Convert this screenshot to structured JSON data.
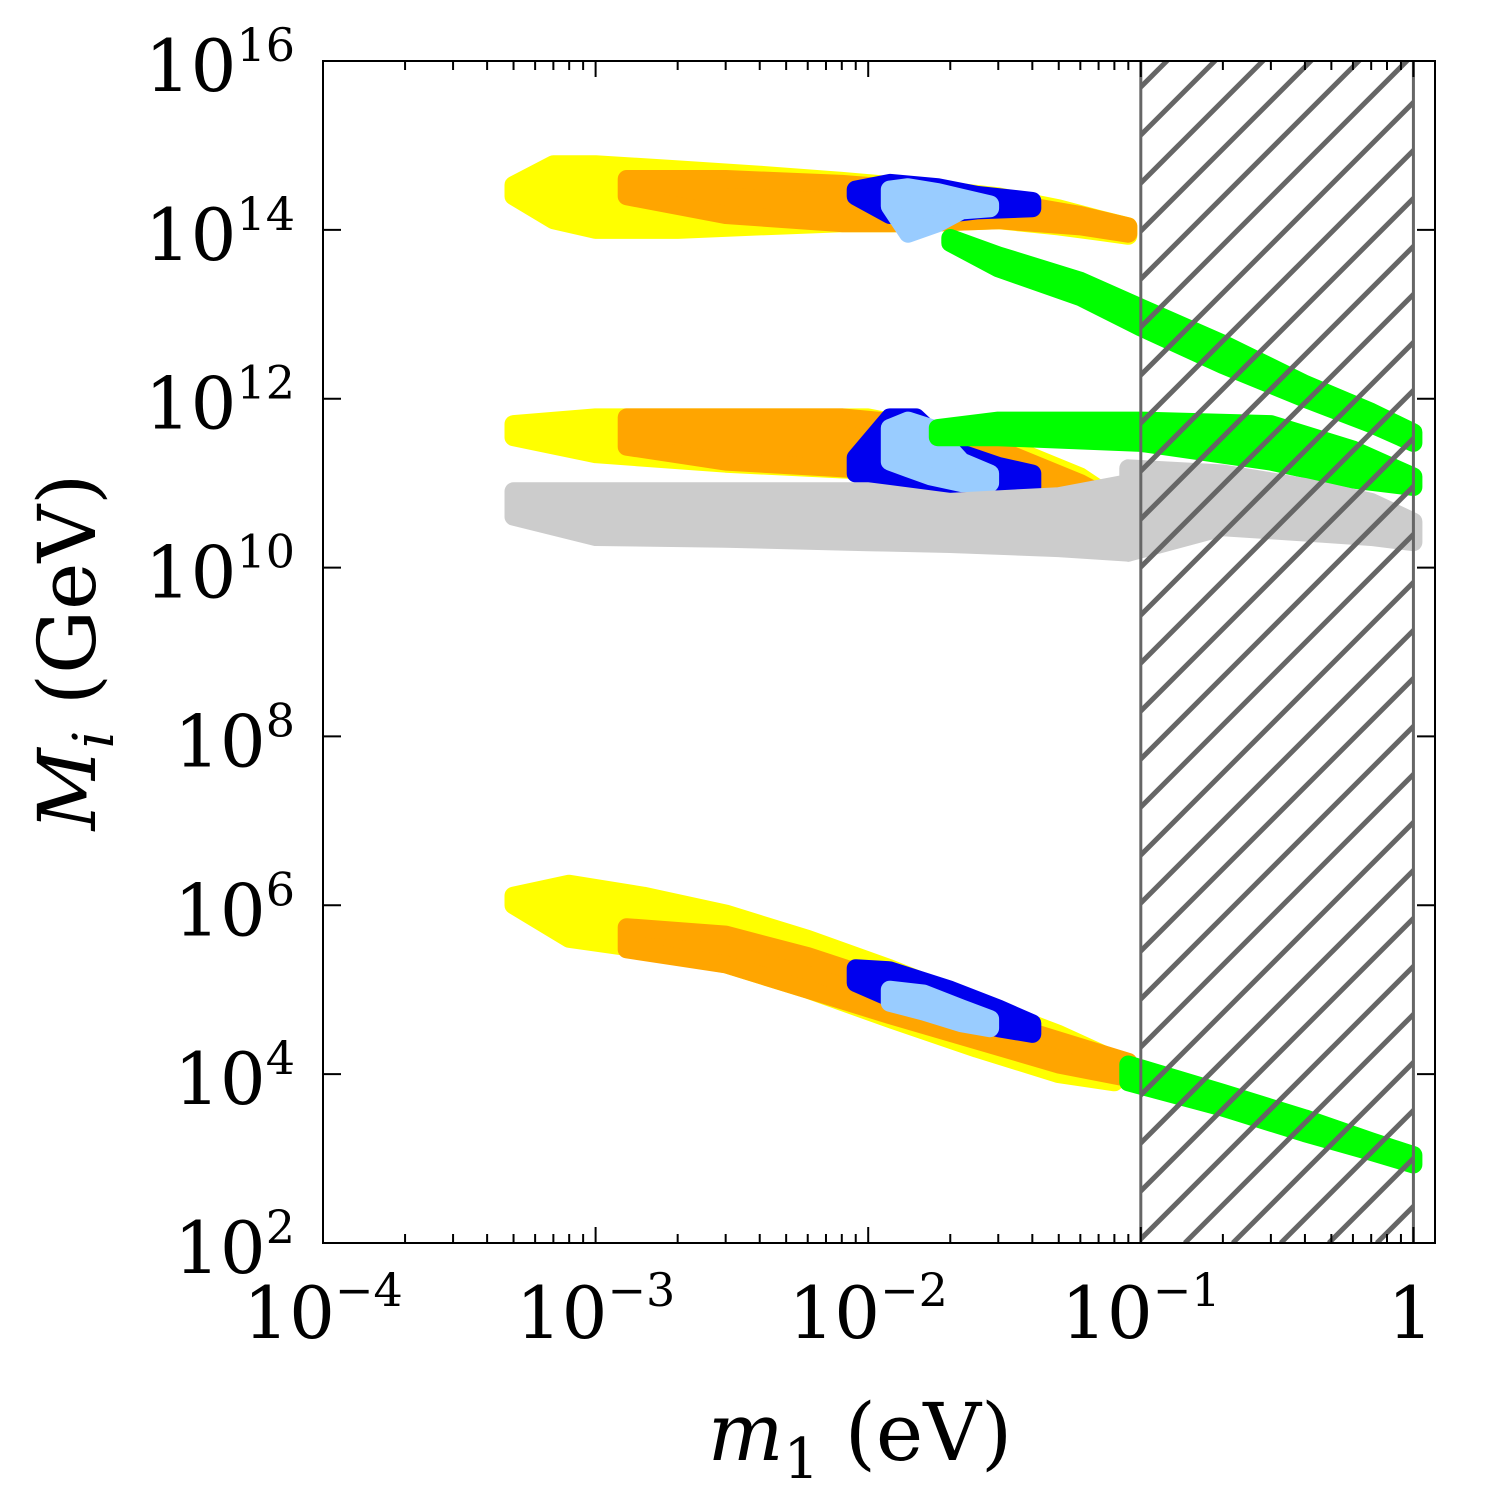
{
  "chart_data": {
    "type": "scatter",
    "title": "",
    "xlabel": "m",
    "xlabel_sub": "1",
    "xlabel_unit": " (eV)",
    "ylabel": "M",
    "ylabel_sub": "i",
    "ylabel_unit": " (GeV)",
    "x_scale": "log",
    "y_scale": "log",
    "xlim": [
      0.0001,
      1.2
    ],
    "ylim": [
      100,
      1e+16
    ],
    "x_ticks": [
      {
        "value": 0.0001,
        "base": "10",
        "exp": "−4"
      },
      {
        "value": 0.001,
        "base": "10",
        "exp": "−3"
      },
      {
        "value": 0.01,
        "base": "10",
        "exp": "−2"
      },
      {
        "value": 0.1,
        "base": "10",
        "exp": "−1"
      },
      {
        "value": 1,
        "base": "1",
        "exp": ""
      }
    ],
    "y_ticks": [
      {
        "value": 100,
        "base": "10",
        "exp": "2"
      },
      {
        "value": 10000,
        "base": "10",
        "exp": "4"
      },
      {
        "value": 1000000,
        "base": "10",
        "exp": "6"
      },
      {
        "value": 100000000,
        "base": "10",
        "exp": "8"
      },
      {
        "value": 10000000000,
        "base": "10",
        "exp": "10"
      },
      {
        "value": 1000000000000,
        "base": "10",
        "exp": "12"
      },
      {
        "value": 100000000000000,
        "base": "10",
        "exp": "14"
      },
      {
        "value": 10000000000000000,
        "base": "10",
        "exp": "16"
      }
    ],
    "grid": false,
    "excluded_region": {
      "x_min": 0.1,
      "x_max": 1,
      "pattern": "hatched",
      "color": "#666666"
    },
    "colors": {
      "yellow": "#ffff00",
      "orange": "#ffa500",
      "blue": "#0000ee",
      "lightblue": "#99ccff",
      "green": "#00ff00",
      "gray": "#cccccc"
    },
    "series": [
      {
        "color": "yellow",
        "bands": [
          {
            "x": [
              0.0005,
              0.0007,
              0.001,
              0.002,
              0.004,
              0.008,
              0.015,
              0.03,
              0.05,
              0.07,
              0.09
            ],
            "upper": [
              340000000000000.0,
              600000000000000.0,
              600000000000000.0,
              520000000000000.0,
              450000000000000.0,
              380000000000000.0,
              320000000000000.0,
              250000000000000.0,
              180000000000000.0,
              135000000000000.0,
              110000000000000.0
            ],
            "lower": [
              250000000000000.0,
              130000000000000.0,
              100000000000000.0,
              100000000000000.0,
              110000000000000.0,
              120000000000000.0,
              120000000000000.0,
              130000000000000.0,
              110000000000000.0,
              95000000000000.0,
              85000000000000.0
            ]
          },
          {
            "x": [
              0.0005,
              0.001,
              0.003,
              0.01,
              0.03,
              0.06,
              0.09
            ],
            "upper": [
              500000000000.0,
              600000000000.0,
              600000000000.0,
              600000000000.0,
              300000000000.0,
              120000000000.0,
              50000000000.0
            ],
            "lower": [
              350000000000.0,
              220000000000.0,
              170000000000.0,
              140000000000.0,
              90000000000.0,
              50000000000.0,
              30000000000.0
            ]
          },
          {
            "x": [
              0.0005,
              0.0008,
              0.0015,
              0.003,
              0.006,
              0.012,
              0.025,
              0.05,
              0.08
            ],
            "upper": [
              1300000.0,
              1800000.0,
              1300000.0,
              800000.0,
              400000.0,
              180000.0,
              70000.0,
              30000.0,
              15000.0
            ],
            "lower": [
              1000000.0,
              400000.0,
              300000.0,
              200000.0,
              100000.0,
              45000.0,
              20000.0,
              10000.0,
              8000.0
            ]
          }
        ]
      },
      {
        "color": "orange",
        "bands": [
          {
            "x": [
              0.0013,
              0.003,
              0.008,
              0.015,
              0.03,
              0.06,
              0.09
            ],
            "upper": [
              400000000000000.0,
              400000000000000.0,
              350000000000000.0,
              300000000000000.0,
              220000000000000.0,
              150000000000000.0,
              110000000000000.0
            ],
            "lower": [
              250000000000000.0,
              150000000000000.0,
              120000000000000.0,
              120000000000000.0,
              130000000000000.0,
              110000000000000.0,
              90000000000000.0
            ]
          },
          {
            "x": [
              0.0013,
              0.003,
              0.008,
              0.015,
              0.03,
              0.06,
              0.09
            ],
            "upper": [
              600000000000.0,
              600000000000.0,
              600000000000.0,
              500000000000.0,
              250000000000.0,
              100000000000.0,
              50000000000.0
            ],
            "lower": [
              270000000000.0,
              180000000000.0,
              150000000000.0,
              130000000000.0,
              100000000000.0,
              55000000000.0,
              35000000000.0
            ]
          },
          {
            "x": [
              0.0013,
              0.003,
              0.006,
              0.012,
              0.025,
              0.05,
              0.09
            ],
            "upper": [
              550000.0,
              450000.0,
              250000.0,
              120000.0,
              50000.0,
              25000.0,
              14000.0
            ],
            "lower": [
              300000.0,
              200000.0,
              100000.0,
              50000.0,
              25000.0,
              13000.0,
              9000.0
            ]
          }
        ]
      },
      {
        "color": "blue",
        "bands": [
          {
            "x": [
              0.009,
              0.012,
              0.018,
              0.025,
              0.04
            ],
            "upper": [
              300000000000000.0,
              360000000000000.0,
              320000000000000.0,
              260000000000000.0,
              220000000000000.0
            ],
            "lower": [
              250000000000000.0,
              150000000000000.0,
              150000000000000.0,
              170000000000000.0,
              180000000000000.0
            ]
          },
          {
            "x": [
              0.009,
              0.012,
              0.015,
              0.02,
              0.03,
              0.04
            ],
            "upper": [
              200000000000.0,
              600000000000.0,
              600000000000.0,
              250000000000.0,
              160000000000.0,
              130000000000.0
            ],
            "lower": [
              130000000000.0,
              110000000000.0,
              100000000000.0,
              90000000000.0,
              90000000000.0,
              90000000000.0
            ]
          },
          {
            "x": [
              0.009,
              0.012,
              0.02,
              0.03,
              0.04
            ],
            "upper": [
              180000.0,
              170000.0,
              100000.0,
              60000.0,
              40000.0
            ],
            "lower": [
              120000.0,
              80000.0,
              50000.0,
              35000.0,
              30000.0
            ]
          }
        ]
      },
      {
        "color": "lightblue",
        "bands": [
          {
            "x": [
              0.012,
              0.014,
              0.018,
              0.022,
              0.028
            ],
            "upper": [
              300000000000000.0,
              320000000000000.0,
              280000000000000.0,
              240000000000000.0,
              200000000000000.0
            ],
            "lower": [
              190000000000000.0,
              90000000000000.0,
              120000000000000.0,
              170000000000000.0,
              180000000000000.0
            ]
          },
          {
            "x": [
              0.012,
              0.014,
              0.017,
              0.022,
              0.028
            ],
            "upper": [
              450000000000.0,
              550000000000.0,
              450000000000.0,
              180000000000.0,
              130000000000.0
            ],
            "lower": [
              180000000000.0,
              150000000000.0,
              120000000000.0,
              100000000000.0,
              100000000000.0
            ]
          },
          {
            "x": [
              0.012,
              0.016,
              0.022,
              0.028
            ],
            "upper": [
              100000.0,
              90000.0,
              60000.0,
              45000.0
            ],
            "lower": [
              70000.0,
              55000.0,
              40000.0,
              35000.0
            ]
          }
        ]
      },
      {
        "color": "green",
        "bands": [
          {
            "x": [
              0.02,
              0.03,
              0.06,
              0.1,
              0.2,
              0.4,
              0.7,
              1
            ],
            "upper": [
              80000000000000.0,
              50000000000000.0,
              25000000000000.0,
              12000000000000.0,
              4500000000000.0,
              1500000000000.0,
              700000000000.0,
              400000000000.0
            ],
            "lower": [
              70000000000000.0,
              35000000000000.0,
              16000000000000.0,
              7000000000000.0,
              2500000000000.0,
              1000000000000.0,
              500000000000.0,
              300000000000.0
            ]
          },
          {
            "x": [
              0.018,
              0.03,
              0.1,
              0.3,
              0.6,
              1
            ],
            "upper": [
              450000000000.0,
              550000000000.0,
              550000000000.0,
              500000000000.0,
              250000000000.0,
              120000000000.0
            ],
            "lower": [
              350000000000.0,
              350000000000.0,
              300000000000.0,
              180000000000.0,
              110000000000.0,
              90000000000.0
            ]
          },
          {
            "x": [
              0.09,
              0.2,
              0.4,
              0.7,
              1
            ],
            "upper": [
              13000.0,
              6000.0,
              3000.0,
              1600.0,
              1100.0
            ],
            "lower": [
              8000.0,
              4000.0,
              2000.0,
              1200.0,
              850.0
            ]
          }
        ]
      },
      {
        "color": "gray",
        "bands": [
          {
            "x": [
              0.0005,
              0.001,
              0.003,
              0.01,
              0.02,
              0.05,
              0.09
            ],
            "upper": [
              80000000000.0,
              80000000000.0,
              80000000000.0,
              80000000000.0,
              60000000000.0,
              70000000000.0,
              100000000000.0
            ],
            "lower": [
              40000000000.0,
              23000000000.0,
              22000000000.0,
              20000000000.0,
              19000000000.0,
              17000000000.0,
              15000000000.0
            ]
          },
          {
            "x": [
              0.09,
              0.2,
              0.4,
              0.7,
              1
            ],
            "upper": [
              150000000000.0,
              130000000000.0,
              90000000000.0,
              60000000000.0,
              35000000000.0
            ],
            "lower": [
              15000000000.0,
              30000000000.0,
              26000000000.0,
              23000000000.0,
              20000000000.0
            ]
          }
        ]
      }
    ]
  }
}
